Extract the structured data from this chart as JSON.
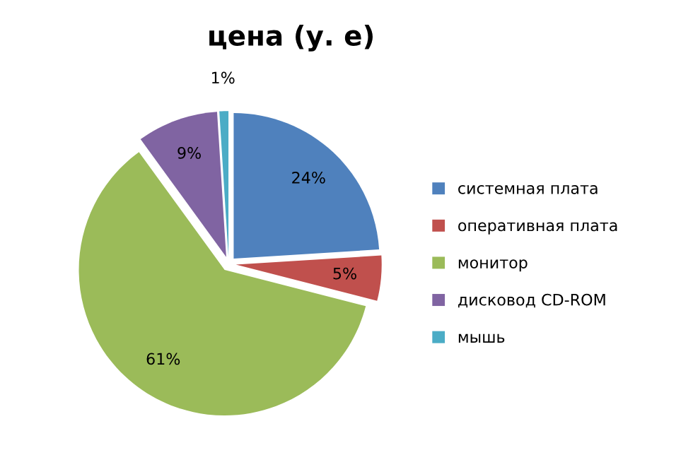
{
  "chart_data": {
    "type": "pie",
    "title": "цена (у. е)",
    "categories": [
      "системная плата",
      "оперативная плата",
      "монитор",
      "дисковод CD-ROM",
      "мышь"
    ],
    "values": [
      24,
      5,
      61,
      9,
      1
    ],
    "colors": [
      "#4f81bd",
      "#c0504d",
      "#9bbb59",
      "#8064a2",
      "#4bacc6"
    ],
    "value_labels": [
      "24%",
      "5%",
      "61%",
      "9%",
      "1%"
    ],
    "legend": "right"
  }
}
